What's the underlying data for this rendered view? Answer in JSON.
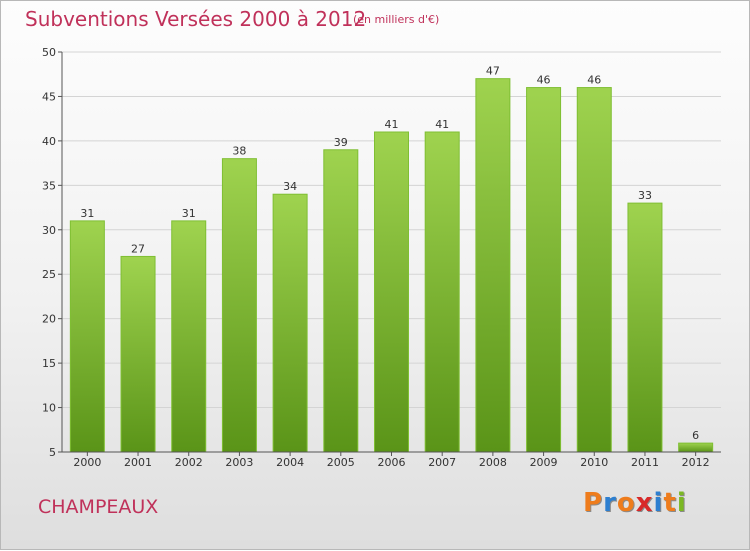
{
  "header": {
    "title": "Subventions Versées 2000 à 2012",
    "subtitle": "(en milliers d'€)"
  },
  "footer": {
    "commune": "CHAMPEAUX",
    "logo_text": "Proxiti"
  },
  "colors": {
    "title": "#c0315a",
    "bar_top": "#9fd34f",
    "bar_bottom": "#5a9418",
    "logo_letters": [
      "#ee7c1c",
      "#2d7fd0",
      "#ee7c1c",
      "#d82a2a",
      "#2d7fd0",
      "#ee7c1c",
      "#7bb823"
    ]
  },
  "chart_data": {
    "type": "bar",
    "title": "Subventions Versées 2000 à 2012",
    "subtitle": "(en milliers d'€)",
    "xlabel": "",
    "ylabel": "",
    "categories": [
      "2000",
      "2001",
      "2002",
      "2003",
      "2004",
      "2005",
      "2006",
      "2007",
      "2008",
      "2009",
      "2010",
      "2011",
      "2012"
    ],
    "values": [
      31,
      27,
      31,
      38,
      34,
      39,
      41,
      41,
      47,
      46,
      46,
      33,
      6
    ],
    "ylim": [
      5,
      50
    ],
    "yticks": [
      5,
      10,
      15,
      20,
      25,
      30,
      35,
      40,
      45,
      50
    ],
    "grid": true,
    "legend": "none"
  }
}
